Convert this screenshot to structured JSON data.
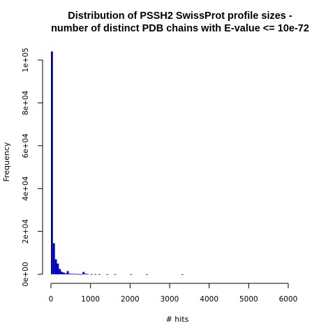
{
  "chart_data": {
    "type": "bar",
    "title_line1": "Distribution of PSSH2 SwissProt profile sizes -",
    "title_line2": "number of distinct PDB chains with E-value <= 10e-72",
    "xlabel": "# hits",
    "ylabel": "Frequency",
    "xlim": [
      0,
      6300
    ],
    "ylim": [
      0,
      104000
    ],
    "bin_width": 50,
    "bar_color": "#0000bb",
    "x_ticks": [
      {
        "value": 0,
        "label": "0"
      },
      {
        "value": 1000,
        "label": "1000"
      },
      {
        "value": 2000,
        "label": "2000"
      },
      {
        "value": 3000,
        "label": "3000"
      },
      {
        "value": 4000,
        "label": "4000"
      },
      {
        "value": 5000,
        "label": "5000"
      },
      {
        "value": 6000,
        "label": "6000"
      }
    ],
    "y_ticks": [
      {
        "value": 0,
        "label": "0e+00"
      },
      {
        "value": 20000,
        "label": "2e+04"
      },
      {
        "value": 40000,
        "label": "4e+04"
      },
      {
        "value": 60000,
        "label": "6e+04"
      },
      {
        "value": 80000,
        "label": "8e+04"
      },
      {
        "value": 100000,
        "label": "1e+05"
      }
    ],
    "bins": [
      {
        "x": 0,
        "value": 104000
      },
      {
        "x": 50,
        "value": 14500
      },
      {
        "x": 100,
        "value": 7000
      },
      {
        "x": 150,
        "value": 5000
      },
      {
        "x": 200,
        "value": 2500
      },
      {
        "x": 250,
        "value": 1200
      },
      {
        "x": 300,
        "value": 800
      },
      {
        "x": 350,
        "value": 400
      },
      {
        "x": 400,
        "value": 1500
      },
      {
        "x": 450,
        "value": 300
      },
      {
        "x": 500,
        "value": 250
      },
      {
        "x": 550,
        "value": 200
      },
      {
        "x": 600,
        "value": 150
      },
      {
        "x": 650,
        "value": 120
      },
      {
        "x": 700,
        "value": 100
      },
      {
        "x": 750,
        "value": 80
      },
      {
        "x": 800,
        "value": 1100
      },
      {
        "x": 850,
        "value": 300
      },
      {
        "x": 900,
        "value": 150
      },
      {
        "x": 1000,
        "value": 80
      },
      {
        "x": 1100,
        "value": 60
      },
      {
        "x": 1200,
        "value": 50
      },
      {
        "x": 1400,
        "value": 40
      },
      {
        "x": 1600,
        "value": 30
      },
      {
        "x": 2000,
        "value": 20
      },
      {
        "x": 2400,
        "value": 20
      },
      {
        "x": 3300,
        "value": 20
      }
    ]
  }
}
